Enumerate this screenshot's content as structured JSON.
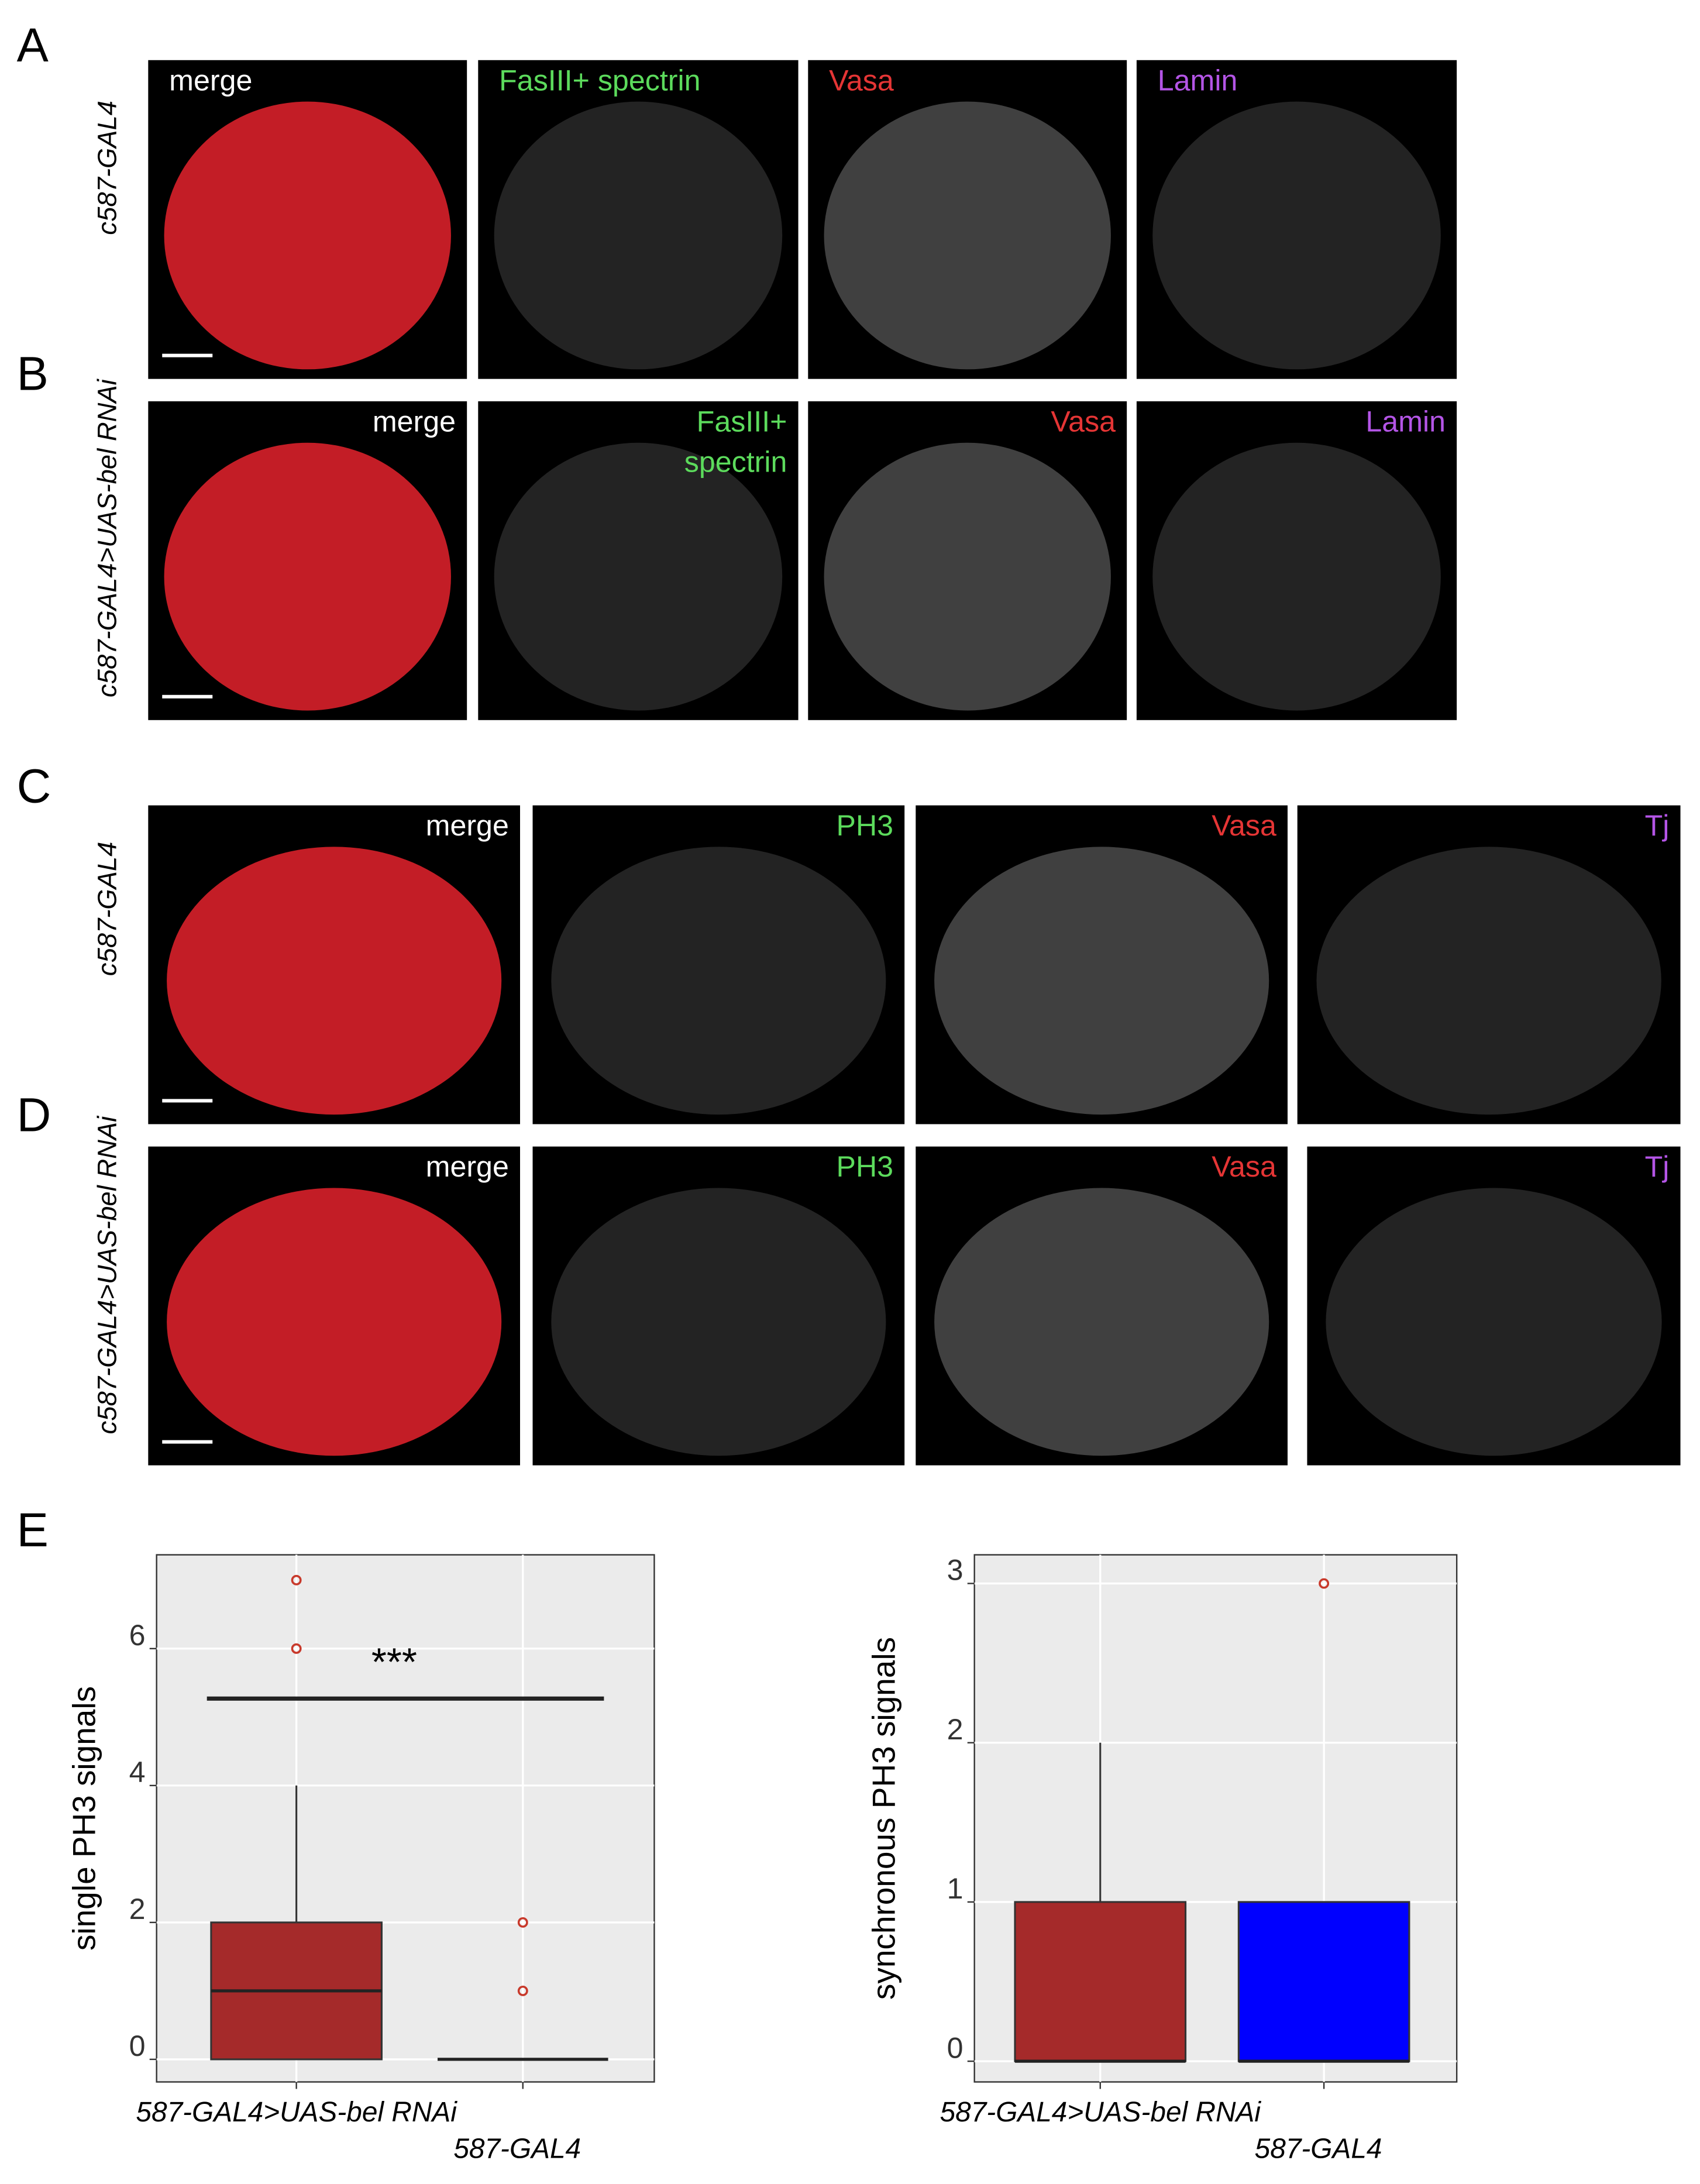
{
  "panels": [
    {
      "letter": "A",
      "row_label": "c587-GAL4",
      "channels": [
        {
          "text": [
            "merge"
          ],
          "color": "#ffffff"
        },
        {
          "text": [
            "FasIII+ spectrin"
          ],
          "color": "#5cdb5c"
        },
        {
          "text": [
            "Vasa"
          ],
          "color": "#e53535"
        },
        {
          "text": [
            "Lamin"
          ],
          "color": "#b455e6"
        }
      ]
    },
    {
      "letter": "B",
      "row_label": "c587-GAL4>UAS-bel RNAi",
      "channels": [
        {
          "text": [
            "merge"
          ],
          "color": "#ffffff"
        },
        {
          "text": [
            "FasIII+",
            "spectrin"
          ],
          "color": "#5cdb5c"
        },
        {
          "text": [
            "Vasa"
          ],
          "color": "#e53535"
        },
        {
          "text": [
            "Lamin"
          ],
          "color": "#b455e6"
        }
      ]
    },
    {
      "letter": "C",
      "row_label": "c587-GAL4",
      "channels": [
        {
          "text": [
            "merge"
          ],
          "color": "#ffffff"
        },
        {
          "text": [
            "PH3"
          ],
          "color": "#5cdb5c"
        },
        {
          "text": [
            "Vasa"
          ],
          "color": "#e53535"
        },
        {
          "text": [
            "Tj"
          ],
          "color": "#b455e6"
        }
      ]
    },
    {
      "letter": "D",
      "row_label": "c587-GAL4>UAS-bel RNAi",
      "channels": [
        {
          "text": [
            "merge"
          ],
          "color": "#ffffff"
        },
        {
          "text": [
            "PH3"
          ],
          "color": "#5cdb5c"
        },
        {
          "text": [
            "Vasa"
          ],
          "color": "#e53535"
        },
        {
          "text": [
            "Tj"
          ],
          "color": "#b455e6"
        }
      ]
    }
  ],
  "figure_e": {
    "letter": "E"
  },
  "chart_data": [
    {
      "type": "box",
      "y_label": "single PH3 signals",
      "categories": [
        "587-GAL4>UAS-bel RNAi",
        "587-GAL4"
      ],
      "boxes": [
        {
          "min": 0,
          "q1": 0,
          "median": 1,
          "q3": 2,
          "max": 4,
          "outliers": [
            6,
            7
          ],
          "color": "#a52a2a"
        },
        {
          "min": 0,
          "q1": 0,
          "median": 0,
          "q3": 0,
          "max": 0,
          "outliers": [
            1,
            2
          ],
          "color": "#a52a2a"
        }
      ],
      "outlier_color": "#c8392b",
      "ylim": [
        -0.33,
        7.37
      ],
      "yticks": [
        0,
        2,
        4,
        6
      ],
      "grid": true,
      "annotations": [
        {
          "text": "***",
          "y": 5.27
        }
      ]
    },
    {
      "type": "box",
      "y_label": "synchronous PH3 signals",
      "categories": [
        "587-GAL4>UAS-bel RNAi",
        "587-GAL4"
      ],
      "boxes": [
        {
          "min": 0,
          "q1": 0,
          "median": 0,
          "q3": 1,
          "max": 2,
          "outliers": [],
          "color": "#a52a2a"
        },
        {
          "min": 0,
          "q1": 0,
          "median": 0,
          "q3": 1,
          "max": 1,
          "outliers": [
            3
          ],
          "color": "#0000ff"
        }
      ],
      "outlier_color": "#c8392b",
      "ylim": [
        -0.13,
        3.18
      ],
      "yticks": [
        0,
        1,
        2,
        3
      ],
      "grid": true
    }
  ]
}
